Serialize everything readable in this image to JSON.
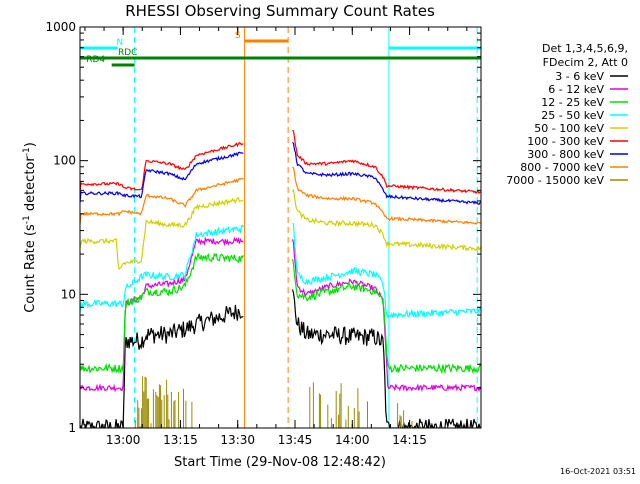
{
  "chart_data": {
    "type": "line",
    "title": "RHESSI Observing Summary Count Rates",
    "xlabel": "Start Time (29-Nov-08 12:48:42)",
    "ylabel_parts": [
      "Count Rate (s",
      "-1",
      " detector",
      "-1",
      ")"
    ],
    "y_scale": "log",
    "ylim": [
      1,
      1000
    ],
    "xlim": [
      12.8117,
      14.5617
    ],
    "x_ticks": [
      13.0,
      13.25,
      13.5,
      13.75,
      14.0,
      14.25
    ],
    "x_tick_labels": [
      "13:00",
      "13:15",
      "13:30",
      "13:45",
      "14:00",
      "14:15"
    ],
    "y_ticks": [
      1,
      10,
      100,
      1000
    ],
    "y_tick_labels": [
      "1",
      "10",
      "100",
      "1000"
    ],
    "legend": {
      "header": [
        "Det 1,3,4,5,6,9,",
        "FDecim 2, Att 0"
      ],
      "placement": "right"
    },
    "footer_timestamp": "16-Oct-2021 03:51",
    "colors": {
      "black": "#000000",
      "magenta": "#e000e0",
      "green": "#00e000",
      "cyan": "#00ffff",
      "yellow": "#d0d000",
      "red": "#ff0000",
      "blue": "#0000e0",
      "orange": "#ff8000",
      "olive": "#9a8a00",
      "dark_green": "#008000",
      "flag_orange": "#ff8000"
    },
    "gap": [
      13.526,
      13.735
    ],
    "series": [
      {
        "name": "3 - 6 keV",
        "color": "#000000",
        "noise": 0.16,
        "dip": 1,
        "points": [
          [
            12.812,
            1
          ],
          [
            13.0,
            1
          ],
          [
            13.01,
            4.5
          ],
          [
            13.08,
            4.5
          ],
          [
            13.1,
            5.0
          ],
          [
            13.2,
            5.0
          ],
          [
            13.27,
            5.5
          ],
          [
            13.32,
            6.0
          ],
          [
            13.742,
            10
          ],
          [
            13.76,
            6.0
          ],
          [
            13.8,
            5.0
          ],
          [
            13.9,
            5.0
          ],
          [
            14.0,
            4.8
          ],
          [
            14.1,
            4.8
          ],
          [
            14.135,
            4.3
          ],
          [
            14.15,
            1
          ],
          [
            14.5617,
            1
          ]
        ]
      },
      {
        "name": "6 - 12 keV",
        "color": "#e000e0",
        "noise": 0.05,
        "points": [
          [
            12.812,
            2
          ],
          [
            13.0,
            2
          ],
          [
            13.01,
            8.5
          ],
          [
            13.08,
            9.5
          ],
          [
            13.1,
            11.5
          ],
          [
            13.2,
            12
          ],
          [
            13.27,
            13
          ],
          [
            13.32,
            25
          ],
          [
            13.742,
            25
          ],
          [
            13.76,
            11.5
          ],
          [
            13.8,
            10
          ],
          [
            13.9,
            11.5
          ],
          [
            14.0,
            12.5
          ],
          [
            14.1,
            11
          ],
          [
            14.135,
            9
          ],
          [
            14.155,
            2
          ],
          [
            14.5617,
            2
          ]
        ]
      },
      {
        "name": "12 - 25 keV",
        "color": "#00e000",
        "noise": 0.07,
        "points": [
          [
            12.812,
            2.8
          ],
          [
            13.0,
            2.8
          ],
          [
            13.01,
            8.5
          ],
          [
            13.08,
            9.5
          ],
          [
            13.1,
            10.5
          ],
          [
            13.2,
            10.5
          ],
          [
            13.27,
            11.5
          ],
          [
            13.32,
            19
          ],
          [
            13.742,
            18
          ],
          [
            13.76,
            10
          ],
          [
            13.8,
            9.5
          ],
          [
            13.9,
            10.5
          ],
          [
            14.0,
            11.5
          ],
          [
            14.1,
            10.5
          ],
          [
            14.135,
            9
          ],
          [
            14.155,
            2.8
          ],
          [
            14.5617,
            2.8
          ]
        ]
      },
      {
        "name": "25 - 50 keV",
        "color": "#00ffff",
        "noise": 0.06,
        "points": [
          [
            12.812,
            8.5
          ],
          [
            13.0,
            8.5
          ],
          [
            13.01,
            11
          ],
          [
            13.08,
            13.5
          ],
          [
            13.1,
            14
          ],
          [
            13.2,
            13.5
          ],
          [
            13.27,
            14
          ],
          [
            13.32,
            28
          ],
          [
            13.742,
            35
          ],
          [
            13.76,
            14
          ],
          [
            13.8,
            12.5
          ],
          [
            13.9,
            13.5
          ],
          [
            14.0,
            15
          ],
          [
            14.1,
            14
          ],
          [
            14.135,
            12
          ],
          [
            14.15,
            7
          ],
          [
            14.5617,
            7.5
          ]
        ]
      },
      {
        "name": "50 - 100 keV",
        "color": "#d0d000",
        "noise": 0.04,
        "points": [
          [
            12.812,
            25
          ],
          [
            12.97,
            25
          ],
          [
            12.98,
            15
          ],
          [
            13.0,
            17
          ],
          [
            13.08,
            18
          ],
          [
            13.1,
            35
          ],
          [
            13.2,
            33
          ],
          [
            13.27,
            33
          ],
          [
            13.32,
            45
          ],
          [
            13.742,
            60
          ],
          [
            13.76,
            42
          ],
          [
            13.8,
            36
          ],
          [
            13.9,
            34
          ],
          [
            14.0,
            34
          ],
          [
            14.1,
            33
          ],
          [
            14.135,
            28
          ],
          [
            14.15,
            24
          ],
          [
            14.5617,
            22
          ]
        ]
      },
      {
        "name": "100 - 300 keV",
        "color": "#ff0000",
        "noise": 0.025,
        "points": [
          [
            12.812,
            67
          ],
          [
            12.99,
            67
          ],
          [
            13.0,
            63
          ],
          [
            13.08,
            60
          ],
          [
            13.1,
            100
          ],
          [
            13.2,
            95
          ],
          [
            13.27,
            85
          ],
          [
            13.32,
            110
          ],
          [
            13.742,
            170
          ],
          [
            13.76,
            110
          ],
          [
            13.8,
            95
          ],
          [
            13.9,
            95
          ],
          [
            14.0,
            100
          ],
          [
            14.1,
            90
          ],
          [
            14.135,
            75
          ],
          [
            14.15,
            65
          ],
          [
            14.5617,
            58
          ]
        ]
      },
      {
        "name": "300 - 800 keV",
        "color": "#0000e0",
        "noise": 0.025,
        "points": [
          [
            12.812,
            57
          ],
          [
            12.99,
            57
          ],
          [
            13.0,
            55
          ],
          [
            13.08,
            54
          ],
          [
            13.1,
            85
          ],
          [
            13.2,
            80
          ],
          [
            13.27,
            72
          ],
          [
            13.32,
            95
          ],
          [
            13.742,
            140
          ],
          [
            13.76,
            95
          ],
          [
            13.8,
            80
          ],
          [
            13.9,
            78
          ],
          [
            14.0,
            80
          ],
          [
            14.1,
            75
          ],
          [
            14.135,
            60
          ],
          [
            14.15,
            54
          ],
          [
            14.5617,
            48
          ]
        ]
      },
      {
        "name": "800 - 7000 keV",
        "color": "#ff8000",
        "noise": 0.025,
        "points": [
          [
            12.812,
            40
          ],
          [
            12.99,
            40
          ],
          [
            13.0,
            42
          ],
          [
            13.08,
            40
          ],
          [
            13.1,
            55
          ],
          [
            13.2,
            52
          ],
          [
            13.27,
            46
          ],
          [
            13.32,
            60
          ],
          [
            13.742,
            90
          ],
          [
            13.76,
            62
          ],
          [
            13.8,
            55
          ],
          [
            13.9,
            52
          ],
          [
            14.0,
            52
          ],
          [
            14.1,
            48
          ],
          [
            14.135,
            40
          ],
          [
            14.15,
            37
          ],
          [
            14.5617,
            34
          ]
        ]
      },
      {
        "name": "7000 - 15000 keV",
        "color": "#9a8a00",
        "noise": 0.0,
        "spiky": true,
        "points": [
          [
            12.812,
            1
          ],
          [
            14.5617,
            1
          ]
        ]
      }
    ],
    "state_flags": [
      {
        "label": "N",
        "color": "#00ffff",
        "segments": [
          [
            12.8117,
            12.975
          ],
          [
            14.16,
            14.5617
          ]
        ],
        "level": 1,
        "label_at": 12.985
      },
      {
        "label": "S",
        "color": "#ff8000",
        "segments": [
          [
            13.53,
            13.72
          ]
        ],
        "level": 2,
        "label_at": 13.5
      },
      {
        "label": "RDC",
        "color": "#008000",
        "segments": [
          [
            12.8117,
            14.5617
          ]
        ],
        "level": 0,
        "label_at": 13.02
      },
      {
        "label": "RD4",
        "color": "#008000",
        "segments": [
          [
            12.95,
            13.05
          ]
        ],
        "level": -1,
        "label_at": 12.88
      }
    ],
    "vertical_lines": [
      {
        "x": 12.8117,
        "color": "#00ffff",
        "style": "solid"
      },
      {
        "x": 13.05,
        "color": "#00ffff",
        "style": "dashed"
      },
      {
        "x": 13.53,
        "color": "#ff8000",
        "style": "solid"
      },
      {
        "x": 13.72,
        "color": "#ff8000",
        "style": "dashed"
      },
      {
        "x": 14.16,
        "color": "#00ffff",
        "style": "solid"
      },
      {
        "x": 14.545,
        "color": "#00ffff",
        "style": "dashed"
      }
    ]
  }
}
